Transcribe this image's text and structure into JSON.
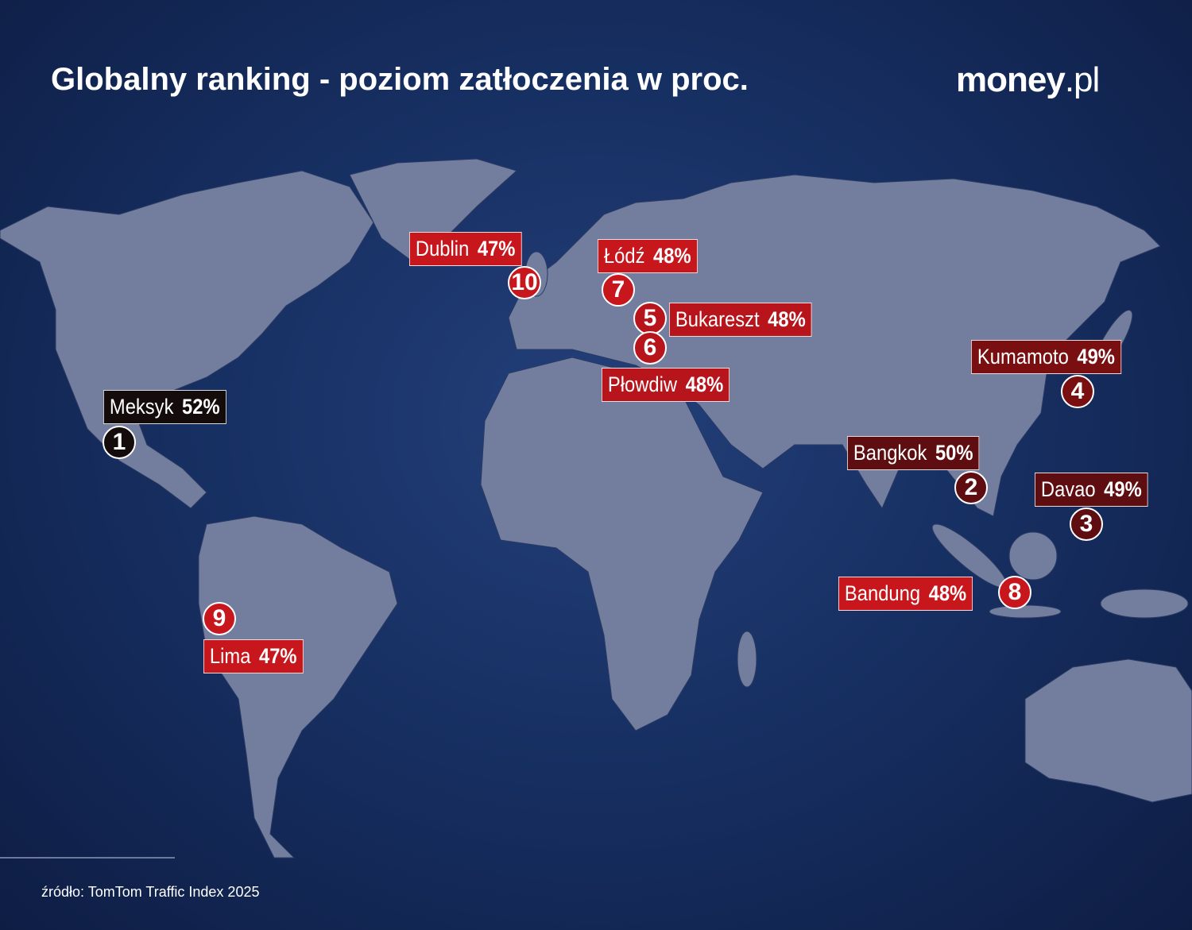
{
  "header": {
    "title": "Globalny ranking - poziom zatłoczenia w proc.",
    "logo_main": "money",
    "logo_suffix": ".pl"
  },
  "cities": [
    {
      "rank": 1,
      "name": "Meksyk",
      "value": "52%",
      "color": "#140b0b"
    },
    {
      "rank": 2,
      "name": "Bangkok",
      "value": "50%",
      "color": "#5e0d10"
    },
    {
      "rank": 3,
      "name": "Davao",
      "value": "49%",
      "color": "#5e0d10"
    },
    {
      "rank": 4,
      "name": "Kumamoto",
      "value": "49%",
      "color": "#7a0f12"
    },
    {
      "rank": 5,
      "name": "Bukareszt",
      "value": "48%",
      "color": "#b8141b"
    },
    {
      "rank": 6,
      "name": "Płowdiw",
      "value": "48%",
      "color": "#b8141b"
    },
    {
      "rank": 7,
      "name": "Łódź",
      "value": "48%",
      "color": "#c8161d"
    },
    {
      "rank": 8,
      "name": "Bandung",
      "value": "48%",
      "color": "#c8161d"
    },
    {
      "rank": 9,
      "name": "Lima",
      "value": "47%",
      "color": "#c8161d"
    },
    {
      "rank": 10,
      "name": "Dublin",
      "value": "47%",
      "color": "#c8161d"
    }
  ],
  "footer": {
    "source": "źródło: TomTom Traffic Index 2025"
  }
}
